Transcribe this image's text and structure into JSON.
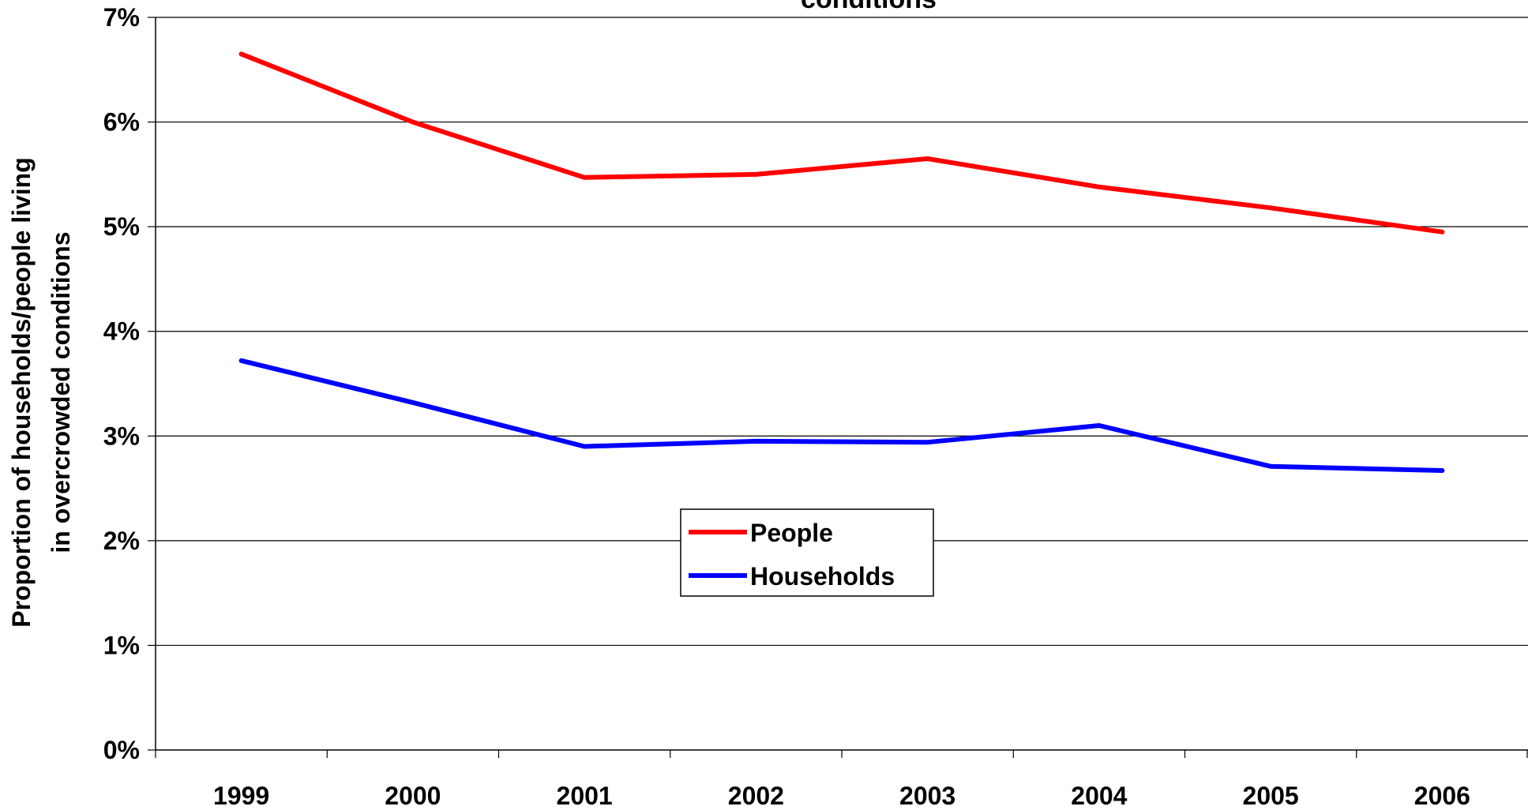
{
  "chart_data": {
    "type": "line",
    "title": "conditions",
    "ylabel_line1": "Proportion of households/people living",
    "ylabel_line2": "in overcrowded conditions",
    "xlabel": "",
    "categories": [
      "1999",
      "2000",
      "2001",
      "2002",
      "2003",
      "2004",
      "2005",
      "2006"
    ],
    "ylim": [
      0,
      7
    ],
    "yticks": [
      0,
      1,
      2,
      3,
      4,
      5,
      6,
      7
    ],
    "ytick_labels": [
      "0%",
      "1%",
      "2%",
      "3%",
      "4%",
      "5%",
      "6%",
      "7%"
    ],
    "grid": true,
    "legend_position": "center",
    "series": [
      {
        "name": "People",
        "color": "#ff0000",
        "values": [
          6.65,
          6.0,
          5.47,
          5.5,
          5.65,
          5.38,
          5.18,
          4.95
        ]
      },
      {
        "name": "Households",
        "color": "#0000ff",
        "values": [
          3.72,
          3.32,
          2.9,
          2.95,
          2.94,
          3.1,
          2.71,
          2.67
        ]
      }
    ]
  }
}
